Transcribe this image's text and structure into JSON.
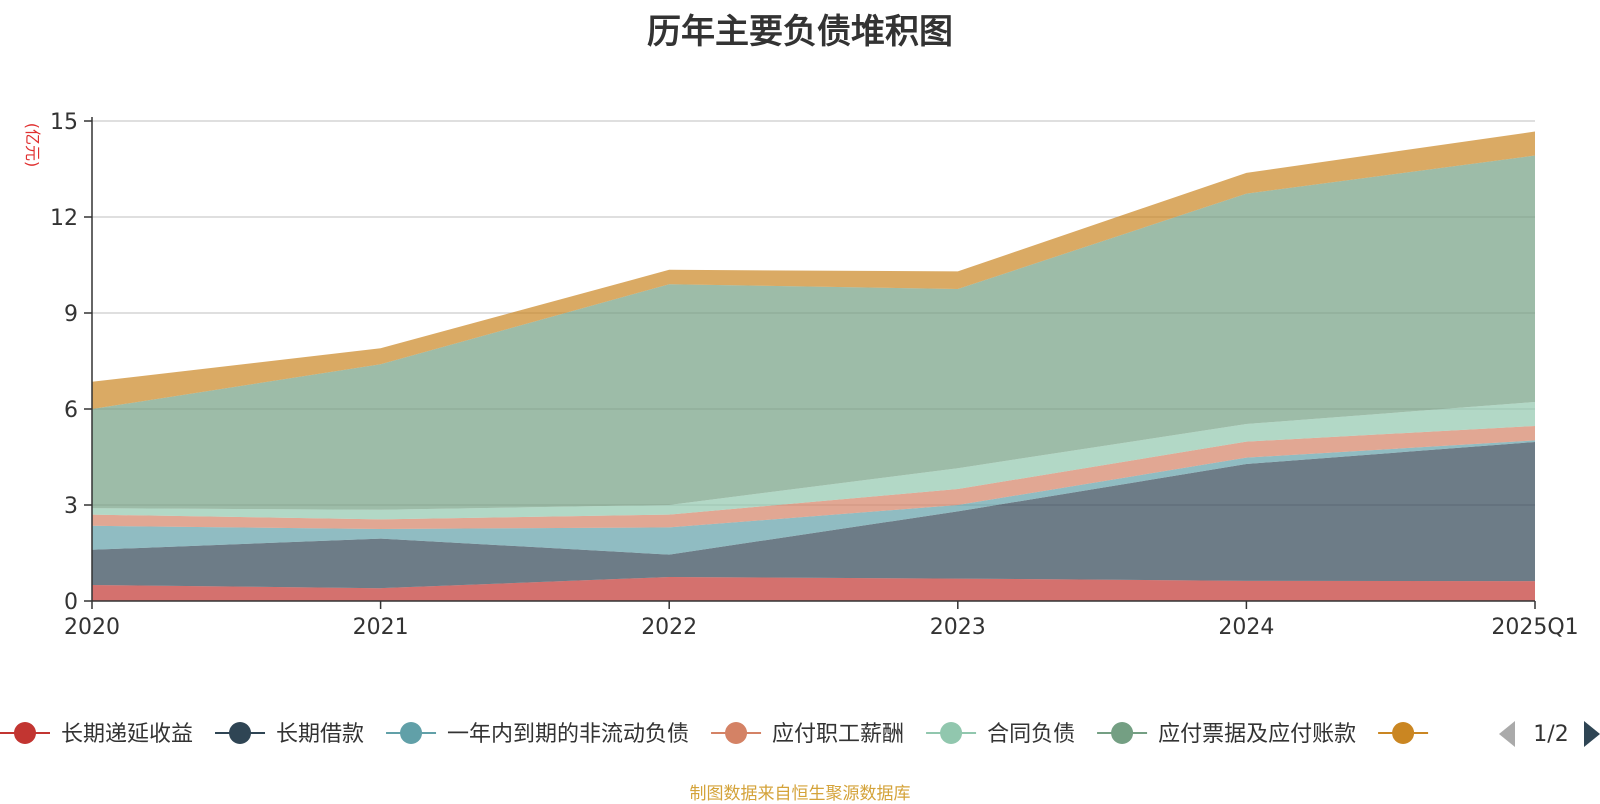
{
  "chart_data": {
    "type": "area",
    "stacked": true,
    "title": "历年主要负债堆积图",
    "ylabel": "(亿元)",
    "xlabel": "",
    "categories": [
      "2020",
      "2021",
      "2022",
      "2023",
      "2024",
      "2025Q1"
    ],
    "ylim": [
      0,
      15
    ],
    "yticks": [
      0,
      3,
      6,
      9,
      12,
      15
    ],
    "grid": true,
    "series": [
      {
        "name": "长期递延收益",
        "color": "#c23531",
        "values": [
          0.5,
          0.4,
          0.75,
          0.7,
          0.63,
          0.62
        ]
      },
      {
        "name": "长期借款",
        "color": "#2f4554",
        "values": [
          1.1,
          1.55,
          0.7,
          2.1,
          3.65,
          4.35
        ]
      },
      {
        "name": "一年内到期的非流动负债",
        "color": "#61a0a8",
        "values": [
          0.75,
          0.3,
          0.85,
          0.2,
          0.2,
          0.05
        ]
      },
      {
        "name": "应付职工薪酬",
        "color": "#d48265",
        "values": [
          0.35,
          0.3,
          0.4,
          0.5,
          0.5,
          0.45
        ]
      },
      {
        "name": "合同负债",
        "color": "#91c7ae",
        "values": [
          0.2,
          0.3,
          0.3,
          0.65,
          0.55,
          0.75
        ]
      },
      {
        "name": "应付票据及应付账款",
        "color": "#749f83",
        "values": [
          3.1,
          4.55,
          6.9,
          5.6,
          7.2,
          7.7
        ]
      },
      {
        "name": "",
        "color": "#ca8622",
        "values": [
          0.85,
          0.5,
          0.45,
          0.55,
          0.65,
          0.75
        ]
      }
    ],
    "legend": {
      "position": "bottom",
      "page_indicator": "1/2"
    }
  },
  "footer": {
    "source": "制图数据来自恒生聚源数据库"
  }
}
